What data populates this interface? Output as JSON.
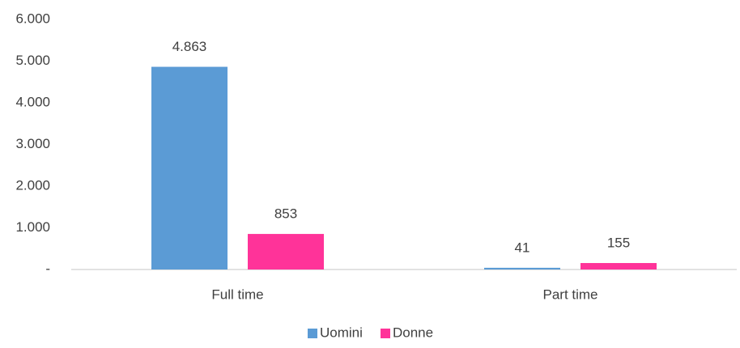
{
  "chart_data": {
    "type": "bar",
    "categories": [
      "Full time",
      "Part time"
    ],
    "series": [
      {
        "name": "Uomini",
        "color": "#5b9bd5",
        "values": [
          4863,
          41
        ],
        "value_labels": [
          "4.863",
          "41"
        ]
      },
      {
        "name": "Donne",
        "color": "#ff3399",
        "values": [
          853,
          155
        ],
        "value_labels": [
          "853",
          "155"
        ]
      }
    ],
    "ylim": [
      0,
      6000
    ],
    "yticks": [
      {
        "value": 0,
        "label": "-"
      },
      {
        "value": 1000,
        "label": "1.000"
      },
      {
        "value": 2000,
        "label": "2.000"
      },
      {
        "value": 3000,
        "label": "3.000"
      },
      {
        "value": 4000,
        "label": "4.000"
      },
      {
        "value": 5000,
        "label": "5.000"
      },
      {
        "value": 6000,
        "label": "6.000"
      }
    ],
    "grid": false,
    "legend": "bottom"
  }
}
